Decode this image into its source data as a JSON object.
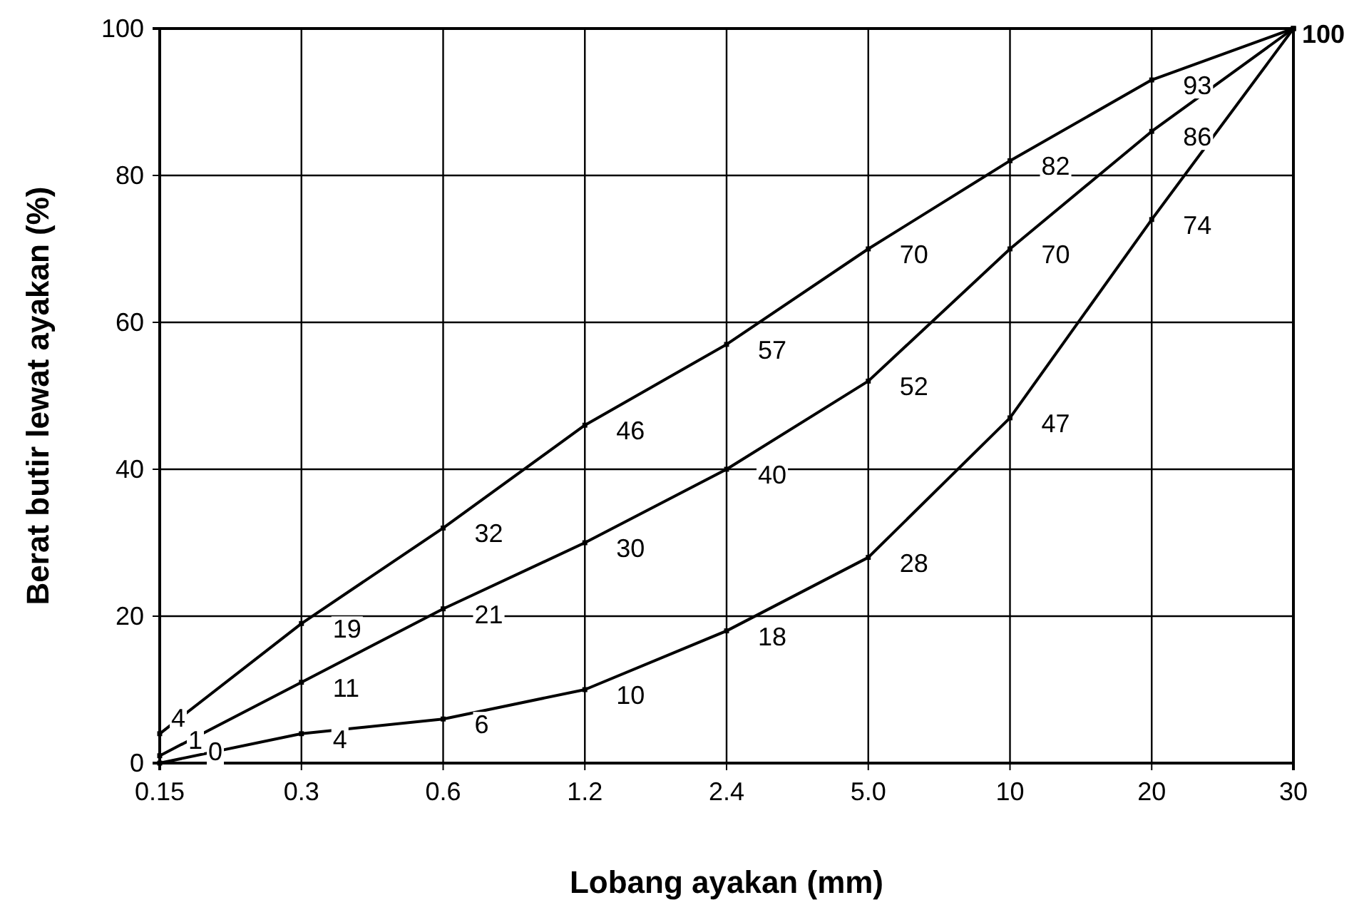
{
  "chart_data": {
    "type": "line",
    "xlabel": "Lobang ayakan (mm)",
    "ylabel": "Berat butir lewat ayakan (%)",
    "categories": [
      "0.15",
      "0.3",
      "0.6",
      "1.2",
      "2.4",
      "5.0",
      "10",
      "20",
      "30"
    ],
    "series": [
      {
        "color": "#000000",
        "values": [
          4,
          19,
          32,
          46,
          57,
          70,
          82,
          93,
          100
        ],
        "value_labels": [
          "4",
          "19",
          "32",
          "46",
          "57",
          "70",
          "82",
          "93",
          "100"
        ]
      },
      {
        "color": "#000000",
        "values": [
          1,
          11,
          21,
          30,
          40,
          52,
          70,
          86,
          100
        ],
        "value_labels": [
          "1",
          "11",
          "21",
          "30",
          "40",
          "52",
          "70",
          "86",
          null
        ]
      },
      {
        "color": "#000000",
        "values": [
          0,
          4,
          6,
          10,
          18,
          28,
          47,
          74,
          100
        ],
        "value_labels": [
          "0",
          "4",
          "6",
          "10",
          "18",
          "28",
          "47",
          "74",
          null
        ]
      }
    ],
    "ylim": [
      0,
      100
    ],
    "yticks": [
      0,
      20,
      40,
      60,
      80,
      100
    ],
    "grid": true,
    "marker": "square",
    "line_style": "solid"
  }
}
